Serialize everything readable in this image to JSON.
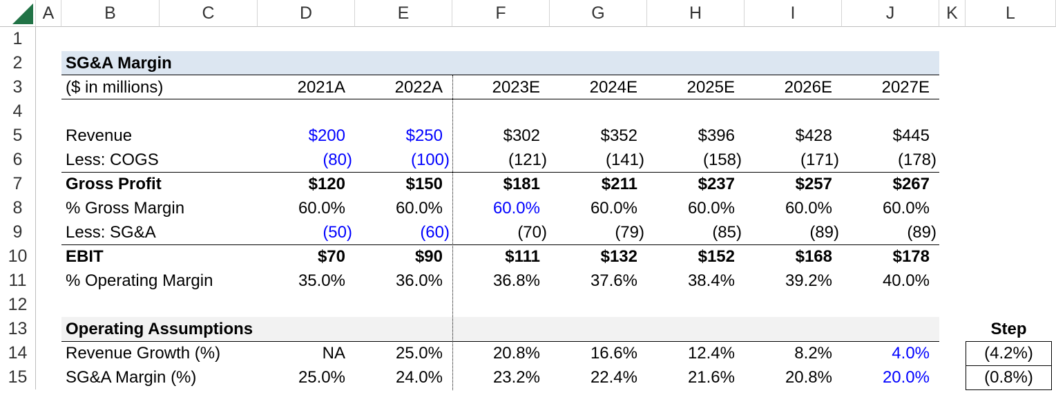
{
  "columns": [
    "A",
    "B",
    "C",
    "D",
    "E",
    "F",
    "G",
    "H",
    "I",
    "J",
    "K",
    "L"
  ],
  "rows": [
    "1",
    "2",
    "3",
    "4",
    "5",
    "6",
    "7",
    "8",
    "9",
    "10",
    "11",
    "12",
    "13",
    "14",
    "15"
  ],
  "title": "SG&A Margin",
  "units": "($ in millions)",
  "years": [
    "2021A",
    "2022A",
    "2023E",
    "2024E",
    "2025E",
    "2026E",
    "2027E"
  ],
  "revenue": {
    "label": "Revenue",
    "values": [
      "$200",
      "$250",
      "$302",
      "$352",
      "$396",
      "$428",
      "$445"
    ]
  },
  "cogs": {
    "label": "Less: COGS",
    "values": [
      "(80)",
      "(100)",
      "(121)",
      "(141)",
      "(158)",
      "(171)",
      "(178)"
    ]
  },
  "gross_profit": {
    "label": "Gross Profit",
    "values": [
      "$120",
      "$150",
      "$181",
      "$211",
      "$237",
      "$257",
      "$267"
    ]
  },
  "gross_margin": {
    "label": "% Gross Margin",
    "values": [
      "60.0%",
      "60.0%",
      "60.0%",
      "60.0%",
      "60.0%",
      "60.0%",
      "60.0%"
    ]
  },
  "sga": {
    "label": "Less: SG&A",
    "values": [
      "(50)",
      "(60)",
      "(70)",
      "(79)",
      "(85)",
      "(89)",
      "(89)"
    ]
  },
  "ebit": {
    "label": "EBIT",
    "values": [
      "$70",
      "$90",
      "$111",
      "$132",
      "$152",
      "$168",
      "$178"
    ]
  },
  "op_margin": {
    "label": "% Operating Margin",
    "values": [
      "35.0%",
      "36.0%",
      "36.8%",
      "37.6%",
      "38.4%",
      "39.2%",
      "40.0%"
    ]
  },
  "assumptions_title": "Operating Assumptions",
  "revenue_growth": {
    "label": "Revenue Growth (%)",
    "values": [
      "NA",
      "25.0%",
      "20.8%",
      "16.6%",
      "12.4%",
      "8.2%",
      "4.0%"
    ]
  },
  "sga_margin": {
    "label": "SG&A Margin (%)",
    "values": [
      "25.0%",
      "24.0%",
      "23.2%",
      "22.4%",
      "21.6%",
      "20.8%",
      "20.0%"
    ]
  },
  "step": {
    "label": "Step",
    "revenue_growth_step": "(4.2%)",
    "sga_margin_step": "(0.8%)"
  },
  "colors": {
    "input_blue": "#0000ff",
    "title_band": "#dce6f1",
    "assumptions_band": "#f2f2f2",
    "excel_green": "#217346"
  }
}
